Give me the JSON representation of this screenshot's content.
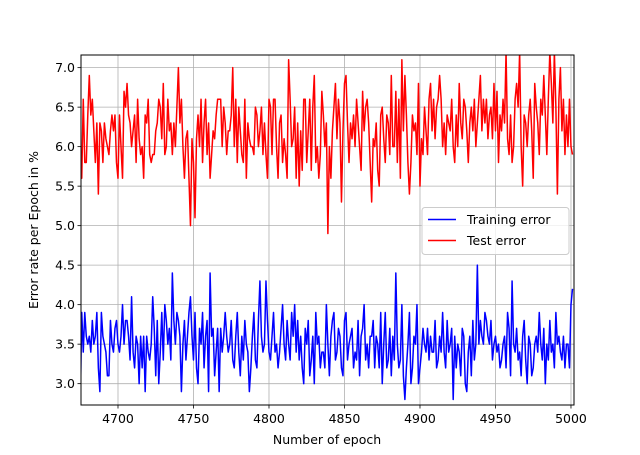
{
  "chart_data": {
    "type": "line",
    "xlabel": "Number of epoch",
    "ylabel": "Error rate per Epoch in %",
    "xlim": [
      4675.5,
      5002
    ],
    "ylim": [
      2.73,
      7.16
    ],
    "xticks": [
      4700,
      4750,
      4800,
      4850,
      4900,
      4950,
      5000
    ],
    "yticks": [
      {
        "value": 3,
        "label": "3.0"
      },
      {
        "value": 3.5,
        "label": "3.5"
      },
      {
        "value": 4,
        "label": "4.0"
      },
      {
        "value": 4.5,
        "label": "4.5"
      },
      {
        "value": 5,
        "label": "5.0"
      },
      {
        "value": 5.5,
        "label": "5.5"
      },
      {
        "value": 6,
        "label": "6.0"
      },
      {
        "value": 6.5,
        "label": "6.5"
      },
      {
        "value": 7,
        "label": "7.0"
      }
    ],
    "grid": true,
    "legend": "center right",
    "x": [
      4675,
      4676,
      4677,
      4678,
      4679,
      4680,
      4681,
      4682,
      4683,
      4684,
      4685,
      4686,
      4687,
      4688,
      4689,
      4690,
      4691,
      4692,
      4693,
      4694,
      4695,
      4696,
      4697,
      4698,
      4699,
      4700,
      4701,
      4702,
      4703,
      4704,
      4705,
      4706,
      4707,
      4708,
      4709,
      4710,
      4711,
      4712,
      4713,
      4714,
      4715,
      4716,
      4717,
      4718,
      4719,
      4720,
      4721,
      4722,
      4723,
      4724,
      4725,
      4726,
      4727,
      4728,
      4729,
      4730,
      4731,
      4732,
      4733,
      4734,
      4735,
      4736,
      4737,
      4738,
      4739,
      4740,
      4741,
      4742,
      4743,
      4744,
      4745,
      4746,
      4747,
      4748,
      4749,
      4750,
      4751,
      4752,
      4753,
      4754,
      4755,
      4756,
      4757,
      4758,
      4759,
      4760,
      4761,
      4762,
      4763,
      4764,
      4765,
      4766,
      4767,
      4768,
      4769,
      4770,
      4771,
      4772,
      4773,
      4774,
      4775,
      4776,
      4777,
      4778,
      4779,
      4780,
      4781,
      4782,
      4783,
      4784,
      4785,
      4786,
      4787,
      4788,
      4789,
      4790,
      4791,
      4792,
      4793,
      4794,
      4795,
      4796,
      4797,
      4798,
      4799,
      4800,
      4801,
      4802,
      4803,
      4804,
      4805,
      4806,
      4807,
      4808,
      4809,
      4810,
      4811,
      4812,
      4813,
      4814,
      4815,
      4816,
      4817,
      4818,
      4819,
      4820,
      4821,
      4822,
      4823,
      4824,
      4825,
      4826,
      4827,
      4828,
      4829,
      4830,
      4831,
      4832,
      4833,
      4834,
      4835,
      4836,
      4837,
      4838,
      4839,
      4840,
      4841,
      4842,
      4843,
      4844,
      4845,
      4846,
      4847,
      4848,
      4849,
      4850,
      4851,
      4852,
      4853,
      4854,
      4855,
      4856,
      4857,
      4858,
      4859,
      4860,
      4861,
      4862,
      4863,
      4864,
      4865,
      4866,
      4867,
      4868,
      4869,
      4870,
      4871,
      4872,
      4873,
      4874,
      4875,
      4876,
      4877,
      4878,
      4879,
      4880,
      4881,
      4882,
      4883,
      4884,
      4885,
      4886,
      4887,
      4888,
      4889,
      4890,
      4891,
      4892,
      4893,
      4894,
      4895,
      4896,
      4897,
      4898,
      4899,
      4900,
      4901,
      4902,
      4903,
      4904,
      4905,
      4906,
      4907,
      4908,
      4909,
      4910,
      4911,
      4912,
      4913,
      4914,
      4915,
      4916,
      4917,
      4918,
      4919,
      4920,
      4921,
      4922,
      4923,
      4924,
      4925,
      4926,
      4927,
      4928,
      4929,
      4930,
      4931,
      4932,
      4933,
      4934,
      4935,
      4936,
      4937,
      4938,
      4939,
      4940,
      4941,
      4942,
      4943,
      4944,
      4945,
      4946,
      4947,
      4948,
      4949,
      4950,
      4951,
      4952,
      4953,
      4954,
      4955,
      4956,
      4957,
      4958,
      4959,
      4960,
      4961,
      4962,
      4963,
      4964,
      4965,
      4966,
      4967,
      4968,
      4969,
      4970,
      4971,
      4972,
      4973,
      4974,
      4975,
      4976,
      4977,
      4978,
      4979,
      4980,
      4981,
      4982,
      4983,
      4984,
      4985,
      4986,
      4987,
      4988,
      4989,
      4990,
      4991,
      4992,
      4993,
      4994,
      4995,
      4996,
      4997,
      4998,
      4999,
      5000,
      5001
    ],
    "series": [
      {
        "name": "Training error",
        "color": "#0000ff",
        "values": [
          2.7,
          3.9,
          3.4,
          3.9,
          3.6,
          3.5,
          3.6,
          3.4,
          3.8,
          3.5,
          3.6,
          3.9,
          3.2,
          2.9,
          3.9,
          3.6,
          3.5,
          3.4,
          3.1,
          3.1,
          3.8,
          3.5,
          3.4,
          3.7,
          3.8,
          3.5,
          3.4,
          3.6,
          4.0,
          3.5,
          3.8,
          3.8,
          3.6,
          3.3,
          4.1,
          3.4,
          3.2,
          3.6,
          3.5,
          3.0,
          3.6,
          3.2,
          3.6,
          2.9,
          3.6,
          3.4,
          3.3,
          3.5,
          4.1,
          3.7,
          3.1,
          3.8,
          3.0,
          3.4,
          3.9,
          3.3,
          4.0,
          3.8,
          3.5,
          3.7,
          3.3,
          4.4,
          3.8,
          3.5,
          3.9,
          3.8,
          3.6,
          2.9,
          3.5,
          3.8,
          3.3,
          3.6,
          3.9,
          4.1,
          3.6,
          3.3,
          3.9,
          3.2,
          3.0,
          3.7,
          3.5,
          3.9,
          3.2,
          3.6,
          3.8,
          2.9,
          4.4,
          3.6,
          3.7,
          3.1,
          3.4,
          3.7,
          2.9,
          3.7,
          3.4,
          3.6,
          3.9,
          3.6,
          3.4,
          3.5,
          3.8,
          3.3,
          3.2,
          3.6,
          3.9,
          3.4,
          3.1,
          3.6,
          3.3,
          3.8,
          3.5,
          3.4,
          2.9,
          3.2,
          3.6,
          3.9,
          3.3,
          3.2,
          3.8,
          4.3,
          3.6,
          3.4,
          3.5,
          4.3,
          3.8,
          3.4,
          3.3,
          3.6,
          3.9,
          3.4,
          3.5,
          3.2,
          3.4,
          3.7,
          4.0,
          3.5,
          3.3,
          3.8,
          3.5,
          3.3,
          3.9,
          3.6,
          4.0,
          3.4,
          3.8,
          3.3,
          3.6,
          3.2,
          3.0,
          3.7,
          3.5,
          3.8,
          3.1,
          3.3,
          3.6,
          3.0,
          3.9,
          3.5,
          3.6,
          3.2,
          3.4,
          3.4,
          3.2,
          4.0,
          3.5,
          3.1,
          3.6,
          3.8,
          3.9,
          3.3,
          3.4,
          3.7,
          3.6,
          3.2,
          3.1,
          3.8,
          3.9,
          3.3,
          3.5,
          3.6,
          3.7,
          3.2,
          3.4,
          3.3,
          3.8,
          3.1,
          3.6,
          3.7,
          4.0,
          3.3,
          3.5,
          3.2,
          3.6,
          3.6,
          3.8,
          3.2,
          3.6,
          3.5,
          3.2,
          3.9,
          3.0,
          3.5,
          3.9,
          3.2,
          3.3,
          3.7,
          3.1,
          3.6,
          3.3,
          4.4,
          3.5,
          3.2,
          3.3,
          4.0,
          3.1,
          2.8,
          3.2,
          3.5,
          3.9,
          3.0,
          3.2,
          3.6,
          3.5,
          4.0,
          3.0,
          3.2,
          3.4,
          3.7,
          3.5,
          3.4,
          3.7,
          3.3,
          3.6,
          3.4,
          3.4,
          3.8,
          3.2,
          3.3,
          3.6,
          3.4,
          3.9,
          3.4,
          3.2,
          3.8,
          3.4,
          3.5,
          3.7,
          2.8,
          3.6,
          3.2,
          3.5,
          3.4,
          3.1,
          3.7,
          3.6,
          3.0,
          2.9,
          3.4,
          3.6,
          3.1,
          3.8,
          3.3,
          3.5,
          4.5,
          3.5,
          3.8,
          3.6,
          3.5,
          3.9,
          3.8,
          3.6,
          3.5,
          3.8,
          3.3,
          3.5,
          3.6,
          3.4,
          3.5,
          3.2,
          3.3,
          3.5,
          3.6,
          3.2,
          3.9,
          3.7,
          3.1,
          4.3,
          3.5,
          3.4,
          3.7,
          3.3,
          3.4,
          3.1,
          3.6,
          3.8,
          3.3,
          3.0,
          3.6,
          3.5,
          3.1,
          3.2,
          3.5,
          3.6,
          3.4,
          3.9,
          3.5,
          3.3,
          3.7,
          3.0,
          3.5,
          3.3,
          3.8,
          3.4,
          3.5,
          3.2,
          3.9,
          3.5,
          3.6,
          3.4,
          3.3,
          3.6,
          3.2,
          3.5,
          3.5,
          3.2,
          4.0,
          4.2
        ]
      },
      {
        "name": "Test error",
        "color": "#ff0000",
        "values": [
          6.0,
          5.6,
          6.6,
          5.8,
          5.8,
          6.4,
          6.9,
          6.4,
          6.6,
          6.2,
          5.8,
          6.3,
          5.4,
          6.3,
          6.2,
          5.8,
          6.3,
          6.1,
          6.0,
          5.9,
          6.2,
          6.4,
          6.2,
          6.4,
          5.8,
          5.6,
          6.4,
          6.0,
          5.6,
          6.7,
          6.5,
          6.8,
          6.4,
          6.3,
          6.0,
          6.2,
          6.4,
          5.8,
          6.6,
          6.1,
          5.9,
          6.0,
          5.6,
          6.4,
          6.3,
          6.6,
          5.9,
          5.8,
          5.9,
          5.9,
          6.2,
          6.3,
          6.6,
          6.5,
          6.1,
          6.8,
          5.9,
          6.0,
          6.6,
          6.2,
          6.3,
          5.9,
          6.3,
          6.0,
          6.5,
          7.0,
          6.3,
          6.6,
          6.0,
          5.6,
          6.1,
          6.2,
          5.6,
          5.0,
          6.1,
          5.8,
          5.1,
          6.1,
          6.4,
          6.0,
          6.6,
          5.8,
          6.3,
          6.6,
          5.9,
          6.3,
          5.6,
          5.9,
          6.2,
          6.1,
          6.4,
          6.6,
          6.6,
          6.6,
          6.0,
          6.5,
          6.3,
          5.9,
          6.2,
          6.2,
          6.4,
          7.0,
          6.0,
          6.6,
          5.8,
          6.5,
          6.2,
          5.9,
          5.8,
          6.6,
          5.6,
          6.3,
          6.1,
          6.0,
          6.0,
          5.9,
          6.5,
          6.4,
          6.0,
          6.2,
          6.5,
          5.9,
          6.3,
          5.9,
          5.6,
          6.6,
          6.5,
          5.9,
          6.6,
          6.6,
          6.0,
          5.6,
          6.3,
          6.4,
          5.8,
          6.1,
          5.9,
          5.6,
          7.1,
          6.6,
          6.0,
          6.1,
          6.5,
          5.6,
          6.3,
          5.5,
          6.2,
          5.7,
          6.6,
          6.6,
          5.8,
          6.2,
          6.6,
          5.7,
          6.5,
          6.9,
          5.8,
          6.0,
          5.6,
          5.9,
          6.7,
          6.4,
          6.0,
          6.3,
          4.9,
          6.0,
          5.6,
          6.2,
          6.5,
          6.8,
          6.1,
          6.6,
          6.3,
          5.3,
          6.2,
          6.8,
          6.9,
          6.3,
          5.8,
          6.3,
          6.1,
          6.4,
          6.0,
          6.6,
          6.3,
          6.0,
          5.7,
          6.7,
          6.2,
          6.5,
          6.6,
          6.3,
          5.8,
          5.3,
          6.1,
          6.0,
          6.3,
          5.7,
          5.5,
          6.4,
          6.5,
          6.1,
          5.8,
          6.4,
          6.3,
          5.9,
          6.9,
          6.0,
          6.0,
          6.7,
          5.8,
          6.6,
          5.6,
          7.1,
          6.2,
          6.9,
          6.4,
          5.8,
          5.4,
          5.8,
          6.4,
          6.2,
          6.3,
          5.9,
          6.8,
          5.5,
          6.1,
          5.9,
          6.5,
          6.2,
          5.9,
          6.6,
          6.8,
          6.2,
          6.6,
          6.1,
          6.5,
          6.6,
          6.9,
          6.6,
          6.0,
          6.3,
          5.9,
          6.4,
          6.3,
          6.2,
          6.6,
          6.0,
          5.8,
          6.4,
          6.0,
          6.8,
          6.3,
          6.1,
          6.6,
          6.5,
          6.2,
          5.8,
          6.3,
          6.5,
          6.2,
          6.6,
          6.0,
          6.3,
          6.6,
          6.9,
          6.2,
          6.6,
          6.3,
          6.6,
          6.1,
          6.4,
          6.5,
          6.1,
          6.8,
          6.2,
          6.7,
          5.8,
          6.4,
          6.2,
          6.6,
          6.3,
          7.2,
          6.1,
          5.9,
          6.4,
          5.8,
          6.0,
          6.6,
          6.8,
          6.5,
          7.2,
          6.0,
          5.5,
          6.4,
          6.3,
          6.0,
          6.4,
          6.6,
          6.2,
          5.6,
          6.8,
          6.5,
          6.3,
          5.9,
          6.6,
          6.4,
          6.9,
          6.4,
          5.9,
          6.6,
          7.2,
          6.8,
          6.3,
          7.2,
          6.5,
          5.4,
          6.6,
          7.0,
          6.2,
          6.6,
          5.9,
          6.4,
          6.0,
          6.6,
          6.0,
          5.9
        ]
      }
    ]
  }
}
